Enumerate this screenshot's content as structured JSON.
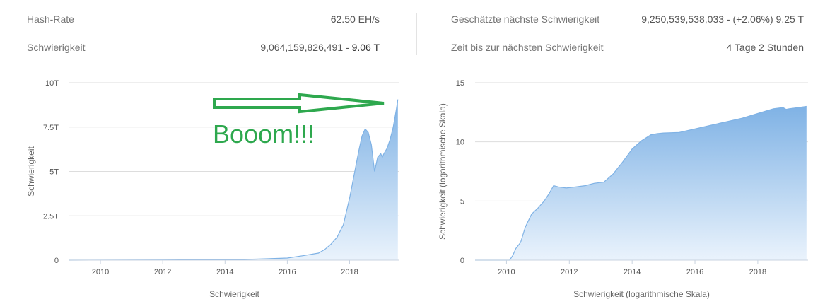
{
  "stats": {
    "hashrate_label": "Hash-Rate",
    "hashrate_value": "62.50 EH/s",
    "difficulty_label": "Schwierigkeit",
    "difficulty_value": "9,064,159,826,491",
    "difficulty_sep": " - ",
    "difficulty_short": "9.06 T",
    "next_label": "Geschätzte nächste Schwierigkeit",
    "next_value": "9,250,539,538,033 - (+2.06%) 9.25 T",
    "time_label": "Zeit bis zur nächsten Schwierigkeit",
    "time_value": "4 Tage 2 Stunden"
  },
  "annotation": {
    "text": "Booom!!!",
    "color": "#2ea84e"
  },
  "colors": {
    "area_top": "#7fb2e5",
    "area_bottom": "#eaf3fc",
    "line": "#7fb2e5",
    "grid": "#dddddd",
    "axis": "#c9d3e0"
  },
  "chart_data": [
    {
      "type": "area",
      "xlabel": "Schwierigkeit",
      "ylabel": "Schwierigkeit",
      "xlim": [
        2009.0,
        2019.6
      ],
      "ylim": [
        0,
        10
      ],
      "x_ticks": [
        2010,
        2012,
        2014,
        2016,
        2018
      ],
      "x_tick_labels": [
        "2010",
        "2012",
        "2014",
        "2016",
        "2018"
      ],
      "y_ticks": [
        0,
        2.5,
        5,
        7.5,
        10
      ],
      "y_tick_labels": [
        "0",
        "2.5T",
        "5T",
        "7.5T",
        "10T"
      ],
      "unit": "T",
      "grid": true,
      "series": [
        {
          "x": [
            2009.0,
            2012.0,
            2014.0,
            2015.0,
            2016.0,
            2016.5,
            2017.0,
            2017.2,
            2017.4,
            2017.6,
            2017.8,
            2018.0,
            2018.2,
            2018.3,
            2018.4,
            2018.5,
            2018.6,
            2018.7,
            2018.8,
            2018.9,
            2019.0,
            2019.05,
            2019.1,
            2019.2,
            2019.3,
            2019.4,
            2019.5,
            2019.55
          ],
          "values": [
            0,
            0.01,
            0.02,
            0.06,
            0.12,
            0.25,
            0.4,
            0.6,
            0.9,
            1.3,
            2.0,
            3.5,
            5.3,
            6.2,
            7.0,
            7.4,
            7.2,
            6.5,
            5.0,
            5.8,
            6.0,
            5.8,
            6.0,
            6.3,
            6.8,
            7.5,
            8.5,
            9.06
          ]
        }
      ]
    },
    {
      "type": "area",
      "xlabel": "Schwierigkeit (logarithmische Skala)",
      "ylabel": "Schwierigkeit (logarithmische Skala)",
      "xlim": [
        2009.0,
        2019.6
      ],
      "ylim": [
        0,
        15
      ],
      "x_ticks": [
        2010,
        2012,
        2014,
        2016,
        2018
      ],
      "x_tick_labels": [
        "2010",
        "2012",
        "2014",
        "2016",
        "2018"
      ],
      "y_ticks": [
        0,
        5,
        10,
        15
      ],
      "y_tick_labels": [
        "0",
        "5",
        "10",
        "15"
      ],
      "grid": true,
      "series": [
        {
          "x": [
            2009.0,
            2010.1,
            2010.2,
            2010.3,
            2010.45,
            2010.6,
            2010.8,
            2011.0,
            2011.2,
            2011.35,
            2011.5,
            2011.65,
            2011.9,
            2012.2,
            2012.5,
            2012.8,
            2013.1,
            2013.4,
            2013.7,
            2014.0,
            2014.3,
            2014.6,
            2014.8,
            2015.0,
            2015.5,
            2016.0,
            2016.5,
            2017.0,
            2017.5,
            2018.0,
            2018.5,
            2018.8,
            2018.9,
            2019.0,
            2019.3,
            2019.55
          ],
          "values": [
            0,
            0,
            0.4,
            1.0,
            1.5,
            2.8,
            3.9,
            4.4,
            5.0,
            5.6,
            6.3,
            6.2,
            6.1,
            6.2,
            6.3,
            6.5,
            6.6,
            7.3,
            8.3,
            9.4,
            10.1,
            10.6,
            10.7,
            10.75,
            10.8,
            11.1,
            11.4,
            11.7,
            12.0,
            12.4,
            12.8,
            12.9,
            12.75,
            12.8,
            12.9,
            13.0
          ]
        }
      ]
    }
  ]
}
